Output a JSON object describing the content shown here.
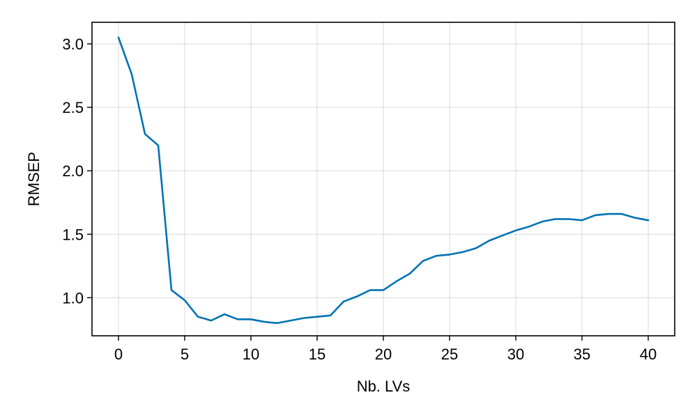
{
  "chart_data": {
    "type": "line",
    "title": "",
    "xlabel": "Nb. LVs",
    "ylabel": "RMSEP",
    "xlim": [
      -2,
      42
    ],
    "ylim": [
      0.7,
      3.17
    ],
    "grid": true,
    "legend": "none",
    "x_ticks": [
      0,
      5,
      10,
      15,
      20,
      25,
      30,
      35,
      40
    ],
    "x_tick_labels": [
      "0",
      "5",
      "10",
      "15",
      "20",
      "25",
      "30",
      "35",
      "40"
    ],
    "y_ticks": [
      1.0,
      1.5,
      2.0,
      2.5,
      3.0
    ],
    "y_tick_labels": [
      "1.0",
      "1.5",
      "2.0",
      "2.5",
      "3.0"
    ],
    "series": [
      {
        "color": "#0072b2",
        "x": [
          0,
          1,
          2,
          3,
          4,
          5,
          6,
          7,
          8,
          9,
          10,
          11,
          12,
          13,
          14,
          15,
          16,
          17,
          18,
          19,
          20,
          21,
          22,
          23,
          24,
          25,
          26,
          27,
          28,
          29,
          30,
          31,
          32,
          33,
          34,
          35,
          36,
          37,
          38,
          39,
          40
        ],
        "values": [
          3.05,
          2.76,
          2.29,
          2.2,
          1.06,
          0.98,
          0.85,
          0.82,
          0.87,
          0.83,
          0.83,
          0.81,
          0.8,
          0.82,
          0.84,
          0.85,
          0.86,
          0.97,
          1.01,
          1.06,
          1.06,
          1.13,
          1.19,
          1.29,
          1.33,
          1.34,
          1.36,
          1.39,
          1.45,
          1.49,
          1.53,
          1.56,
          1.6,
          1.62,
          1.62,
          1.61,
          1.65,
          1.66,
          1.66,
          1.63,
          1.61
        ]
      }
    ]
  }
}
